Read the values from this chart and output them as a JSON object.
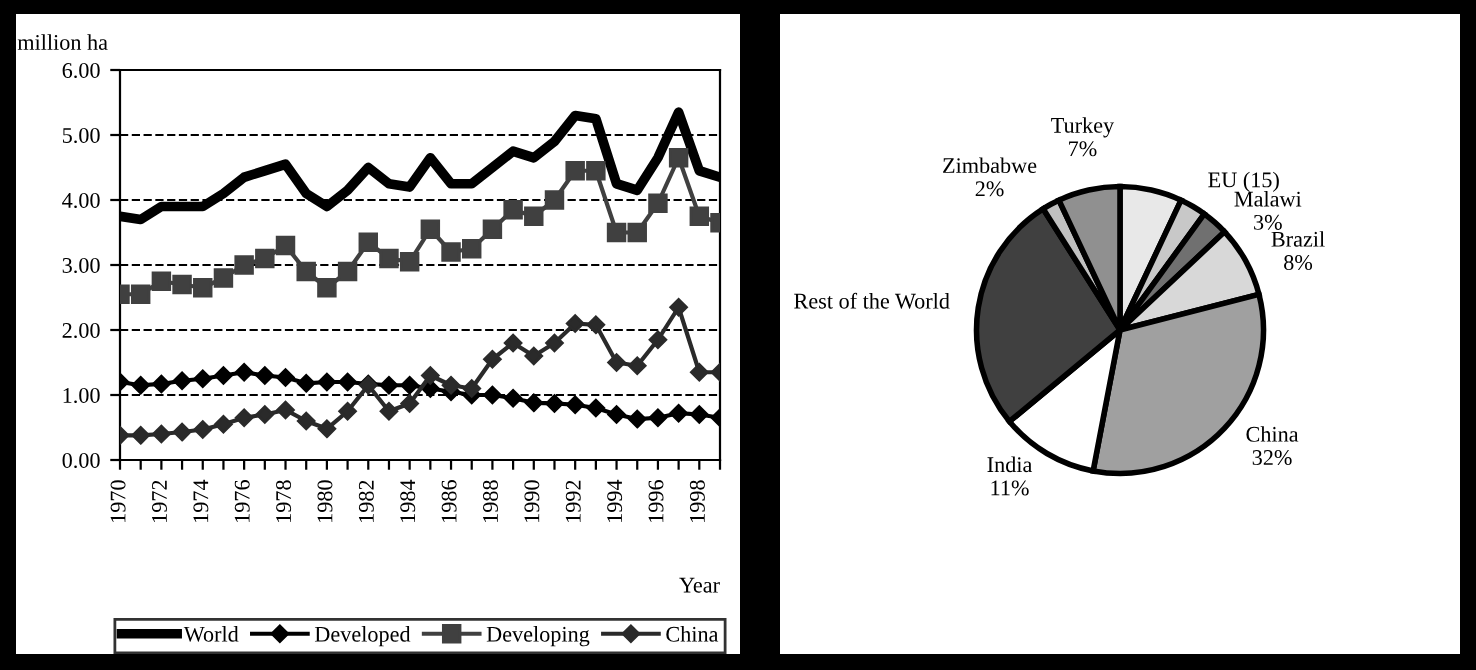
{
  "chart_data": [
    {
      "type": "line",
      "ylabel": "million ha",
      "xlabel": "Year",
      "x": [
        1970,
        1971,
        1972,
        1973,
        1974,
        1975,
        1976,
        1977,
        1978,
        1979,
        1980,
        1981,
        1982,
        1983,
        1984,
        1985,
        1986,
        1987,
        1988,
        1989,
        1990,
        1991,
        1992,
        1993,
        1994,
        1995,
        1996,
        1997,
        1998,
        1999
      ],
      "series": [
        {
          "name": "World",
          "color": "#000000",
          "marker": "none",
          "values": [
            3.75,
            3.7,
            3.9,
            3.9,
            3.9,
            4.1,
            4.35,
            4.45,
            4.55,
            4.1,
            3.9,
            4.15,
            4.5,
            4.25,
            4.2,
            4.65,
            4.25,
            4.25,
            4.5,
            4.75,
            4.65,
            4.9,
            5.3,
            5.25,
            4.25,
            4.15,
            4.65,
            5.35,
            4.45,
            4.35
          ]
        },
        {
          "name": "Developed",
          "color": "#000000",
          "marker": "diamond",
          "values": [
            1.2,
            1.15,
            1.17,
            1.22,
            1.25,
            1.3,
            1.35,
            1.3,
            1.27,
            1.18,
            1.2,
            1.2,
            1.17,
            1.15,
            1.15,
            1.1,
            1.05,
            1.0,
            1.0,
            0.95,
            0.88,
            0.87,
            0.85,
            0.8,
            0.7,
            0.63,
            0.65,
            0.72,
            0.7,
            0.65
          ]
        },
        {
          "name": "Developing",
          "color": "#404040",
          "marker": "square",
          "values": [
            2.55,
            2.55,
            2.75,
            2.7,
            2.65,
            2.8,
            3.0,
            3.1,
            3.3,
            2.9,
            2.65,
            2.9,
            3.35,
            3.1,
            3.05,
            3.55,
            3.2,
            3.25,
            3.55,
            3.85,
            3.75,
            4.0,
            4.45,
            4.45,
            3.5,
            3.5,
            3.95,
            4.65,
            3.75,
            3.65
          ]
        },
        {
          "name": "China",
          "color": "#2a2a2a",
          "marker": "diamond",
          "values": [
            0.38,
            0.38,
            0.4,
            0.43,
            0.47,
            0.55,
            0.65,
            0.7,
            0.77,
            0.6,
            0.48,
            0.75,
            1.15,
            0.75,
            0.87,
            1.3,
            1.15,
            1.1,
            1.55,
            1.8,
            1.6,
            1.8,
            2.1,
            2.08,
            1.5,
            1.45,
            1.85,
            2.35,
            1.35,
            1.35
          ]
        }
      ],
      "xlim": [
        1970,
        1999
      ],
      "xticks": [
        1970,
        {
          "value": 1971,
          "label": null
        },
        1972,
        {
          "value": 1973,
          "label": null
        },
        1974,
        {
          "value": 1975,
          "label": null
        },
        1976,
        {
          "value": 1977,
          "label": null
        },
        1978,
        {
          "value": 1979,
          "label": null
        },
        1980,
        {
          "value": 1981,
          "label": null
        },
        1982,
        {
          "value": 1983,
          "label": null
        },
        1984,
        {
          "value": 1985,
          "label": null
        },
        1986,
        {
          "value": 1987,
          "label": null
        },
        1988,
        {
          "value": 1989,
          "label": null
        },
        1990,
        {
          "value": 1991,
          "label": null
        },
        1992,
        {
          "value": 1993,
          "label": null
        },
        1994,
        {
          "value": 1995,
          "label": null
        },
        1996,
        {
          "value": 1997,
          "label": null
        },
        1998,
        {
          "value": 1999,
          "label": null
        }
      ],
      "ylim": [
        0,
        6
      ],
      "yticks": [
        {
          "value": 0,
          "label": "0.00"
        },
        {
          "value": 1,
          "label": "1.00"
        },
        {
          "value": 2,
          "label": "2.00"
        },
        {
          "value": 3,
          "label": "3.00"
        },
        {
          "value": 4,
          "label": "4.00"
        },
        {
          "value": 5,
          "label": "5.00"
        },
        {
          "value": 6,
          "label": "6.00"
        }
      ],
      "grid": "y",
      "line_style": "solid",
      "legend": "bottom"
    },
    {
      "type": "pie",
      "categories": [
        null,
        "EU (15)",
        "Malawi",
        "Brazil",
        "China",
        "India",
        "Rest of the World",
        "Zimbabwe",
        "Turkey"
      ],
      "values": [
        7,
        3,
        3,
        8,
        32,
        11,
        27,
        2,
        7
      ],
      "value_labels": [
        null,
        null,
        "3%",
        "8%",
        "32%",
        "11%",
        null,
        "2%",
        "7%"
      ],
      "colors": [
        "#e8e8e8",
        "#c8c8c8",
        "#707070",
        "#d8d8d8",
        "#a0a0a0",
        "#ffffff",
        "#404040",
        "#c0c0c0",
        "#909090"
      ]
    }
  ]
}
